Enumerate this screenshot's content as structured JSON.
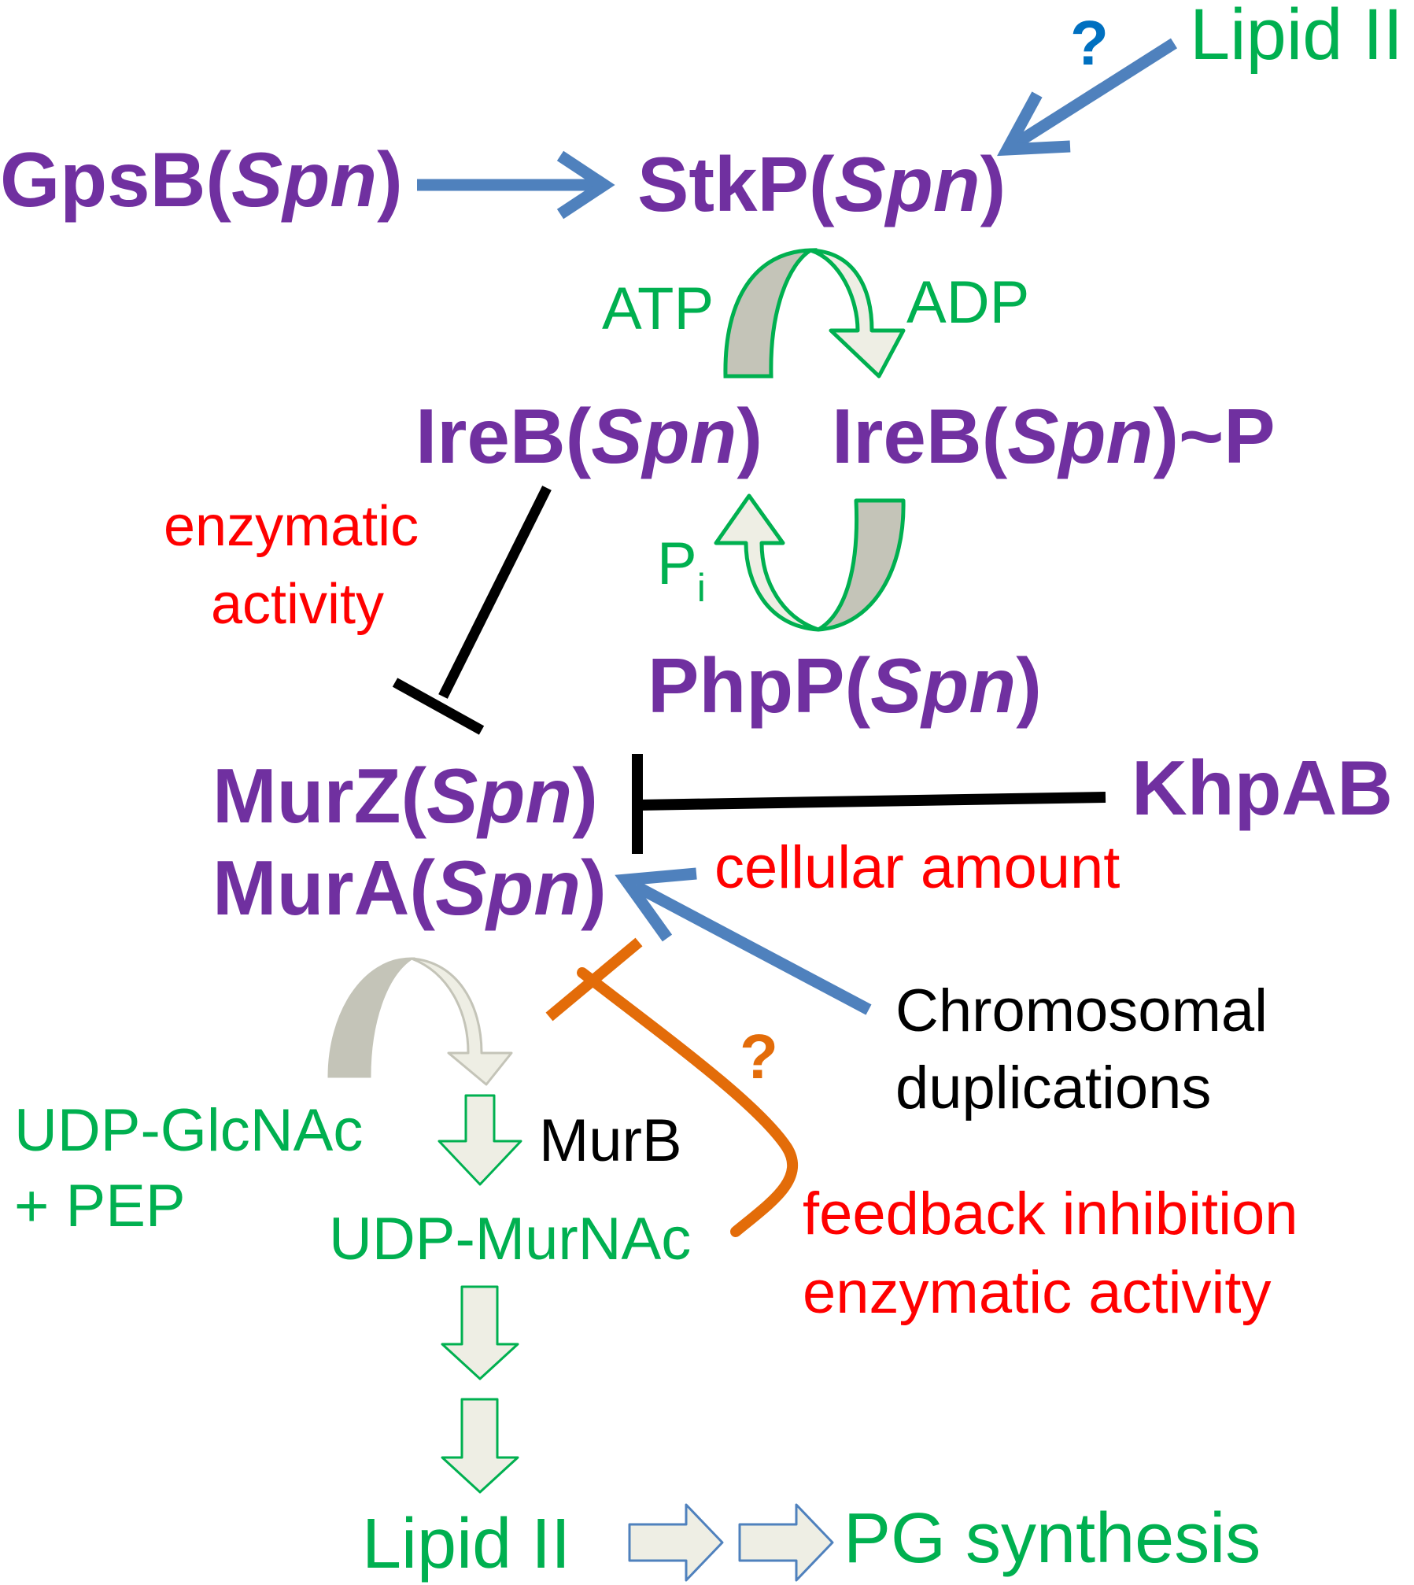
{
  "colors": {
    "protein": "#7030a0",
    "metabolite": "#00b050",
    "annotation": "#ff0000",
    "activation_arrow": "#4f81bd",
    "inhibition_black": "#000000",
    "inhibition_orange": "#e36c09",
    "hollow_arrow_fill": "#eeeee4",
    "hollow_arrow_shade": "#c4c4b8"
  },
  "nodes": {
    "gpsb": {
      "name": "GpsB",
      "species": "Spn"
    },
    "stkp": {
      "name": "StkP",
      "species": "Spn"
    },
    "lipid_ii_top": "Lipid II",
    "ireb": {
      "name": "IreB",
      "species": "Spn"
    },
    "ireb_p": {
      "name": "IreB",
      "species": "Spn",
      "suffix": "~P"
    },
    "phpp": {
      "name": "PhpP",
      "species": "Spn"
    },
    "murz": {
      "name": "MurZ",
      "species": "Spn"
    },
    "mura": {
      "name": "MurA",
      "species": "Spn"
    },
    "khpab": "KhpAB",
    "udp_glcnac": "UDP-GlcNAc",
    "pep": "+ PEP",
    "murb": "MurB",
    "udp_murnac": "UDP-MurNAc",
    "lipid_ii_bottom": "Lipid II",
    "pg_synthesis": "PG synthesis"
  },
  "labels": {
    "atp": "ATP",
    "adp": "ADP",
    "pi": "P",
    "pi_sub": "i",
    "enzymatic_activity_1": "enzymatic",
    "enzymatic_activity_2": "activity",
    "cellular_amount": "cellular amount",
    "chromosomal_1": "Chromosomal",
    "chromosomal_2": "duplications",
    "feedback_1": "feedback inhibition",
    "feedback_2": "enzymatic activity",
    "question_blue": "?",
    "question_orange": "?"
  },
  "edges": [
    {
      "from": "GpsB(Spn)",
      "to": "StkP(Spn)",
      "type": "activation"
    },
    {
      "from": "Lipid II",
      "to": "StkP(Spn)",
      "type": "activation",
      "uncertain": true
    },
    {
      "from": "StkP(Spn)",
      "to": "IreB(Spn)~P",
      "type": "phosphorylation",
      "cofactors": [
        "ATP",
        "ADP"
      ]
    },
    {
      "from": "PhpP(Spn)",
      "to": "IreB(Spn)",
      "type": "dephosphorylation",
      "product": "Pi"
    },
    {
      "from": "IreB(Spn)",
      "to": "MurZ(Spn)",
      "type": "inhibition",
      "label": "enzymatic activity"
    },
    {
      "from": "KhpAB",
      "to": "MurZ(Spn)",
      "type": "inhibition",
      "label": "cellular amount"
    },
    {
      "from": "Chromosomal duplications",
      "to": "MurA(Spn)",
      "type": "activation"
    },
    {
      "from": "UDP-MurNAc",
      "to": "MurA(Spn)",
      "type": "inhibition",
      "label": "feedback inhibition enzymatic activity",
      "uncertain": true
    },
    {
      "from": "UDP-GlcNAc + PEP",
      "to": "UDP-MurNAc",
      "type": "conversion",
      "enzymes": [
        "MurA(Spn)",
        "MurZ(Spn)",
        "MurB"
      ]
    },
    {
      "from": "UDP-MurNAc",
      "to": "Lipid II",
      "type": "pathway"
    },
    {
      "from": "Lipid II",
      "to": "PG synthesis",
      "type": "pathway"
    }
  ]
}
